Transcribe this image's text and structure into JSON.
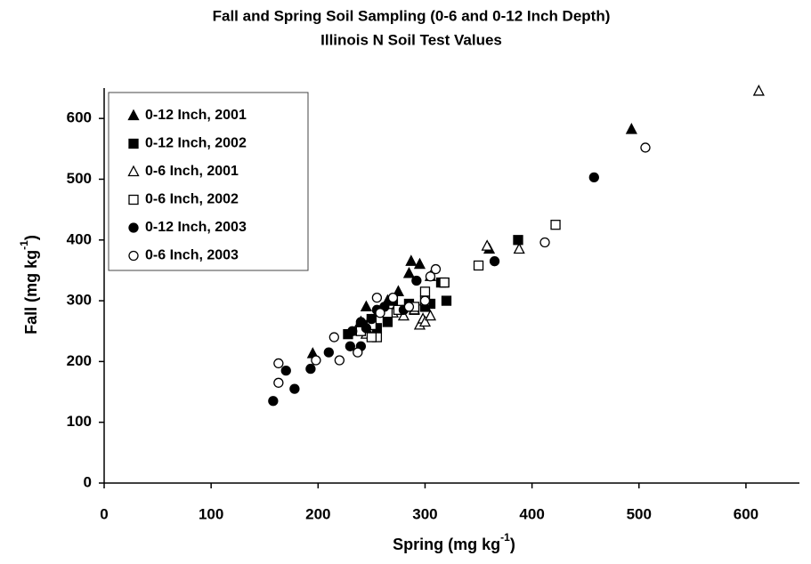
{
  "chart_data": {
    "type": "scatter",
    "title": [
      "Fall and Spring Soil Sampling (0-6 and 0-12 Inch Depth)",
      "Illinois N Soil Test Values"
    ],
    "x_label": {
      "text": "Spring (mg kg",
      "superscript": "-1",
      "suffix": ")"
    },
    "y_label": {
      "text": "Fall (mg kg",
      "superscript": "-1",
      "suffix": ")"
    },
    "xlim": [
      0,
      650
    ],
    "xticks": [
      0,
      100,
      200,
      300,
      400,
      500,
      600
    ],
    "ylim": [
      0,
      650
    ],
    "yticks": [
      0,
      100,
      200,
      300,
      400,
      500,
      600
    ],
    "legend": "upper left",
    "series": [
      {
        "name": "0-12 Inch, 2001",
        "color": "#000000",
        "marker": "triangle",
        "filled": true,
        "x": [
          195,
          240,
          245,
          265,
          275,
          285,
          287,
          295,
          305,
          360,
          493,
          245,
          300
        ],
        "y": [
          213,
          265,
          290,
          300,
          315,
          345,
          365,
          360,
          340,
          385,
          582,
          255,
          300
        ]
      },
      {
        "name": "0-12 Inch, 2002",
        "color": "#000000",
        "marker": "square",
        "filled": true,
        "x": [
          228,
          240,
          245,
          255,
          265,
          270,
          285,
          300,
          305,
          315,
          318,
          320,
          387,
          250,
          290
        ],
        "y": [
          245,
          255,
          260,
          255,
          265,
          300,
          295,
          290,
          295,
          330,
          330,
          300,
          400,
          270,
          285
        ]
      },
      {
        "name": "0-6 Inch, 2001",
        "color": "#000000",
        "marker": "triangle",
        "filled": false,
        "x": [
          235,
          245,
          270,
          280,
          295,
          298,
          300,
          305,
          358,
          388,
          612,
          290
        ],
        "y": [
          250,
          245,
          280,
          275,
          260,
          270,
          265,
          275,
          390,
          385,
          645,
          285
        ]
      },
      {
        "name": "0-6 Inch, 2002",
        "color": "#000000",
        "marker": "square",
        "filled": false,
        "x": [
          240,
          250,
          255,
          265,
          275,
          290,
          300,
          300,
          318,
          350,
          422,
          250
        ],
        "y": [
          250,
          260,
          240,
          280,
          285,
          290,
          300,
          315,
          330,
          358,
          425,
          240
        ]
      },
      {
        "name": "0-12 Inch, 2003",
        "color": "#000000",
        "marker": "circle",
        "filled": true,
        "x": [
          158,
          170,
          178,
          193,
          210,
          230,
          232,
          240,
          240,
          250,
          255,
          262,
          280,
          292,
          365,
          458,
          245
        ],
        "y": [
          135,
          185,
          155,
          188,
          215,
          225,
          250,
          225,
          265,
          270,
          285,
          290,
          285,
          333,
          365,
          503,
          255
        ]
      },
      {
        "name": "0-6 Inch, 2003",
        "color": "#000000",
        "marker": "circle",
        "filled": false,
        "x": [
          163,
          163,
          198,
          215,
          220,
          237,
          255,
          270,
          285,
          300,
          305,
          310,
          412,
          506,
          258
        ],
        "y": [
          197,
          165,
          202,
          240,
          202,
          215,
          305,
          305,
          290,
          300,
          340,
          352,
          396,
          552,
          280
        ]
      }
    ]
  }
}
